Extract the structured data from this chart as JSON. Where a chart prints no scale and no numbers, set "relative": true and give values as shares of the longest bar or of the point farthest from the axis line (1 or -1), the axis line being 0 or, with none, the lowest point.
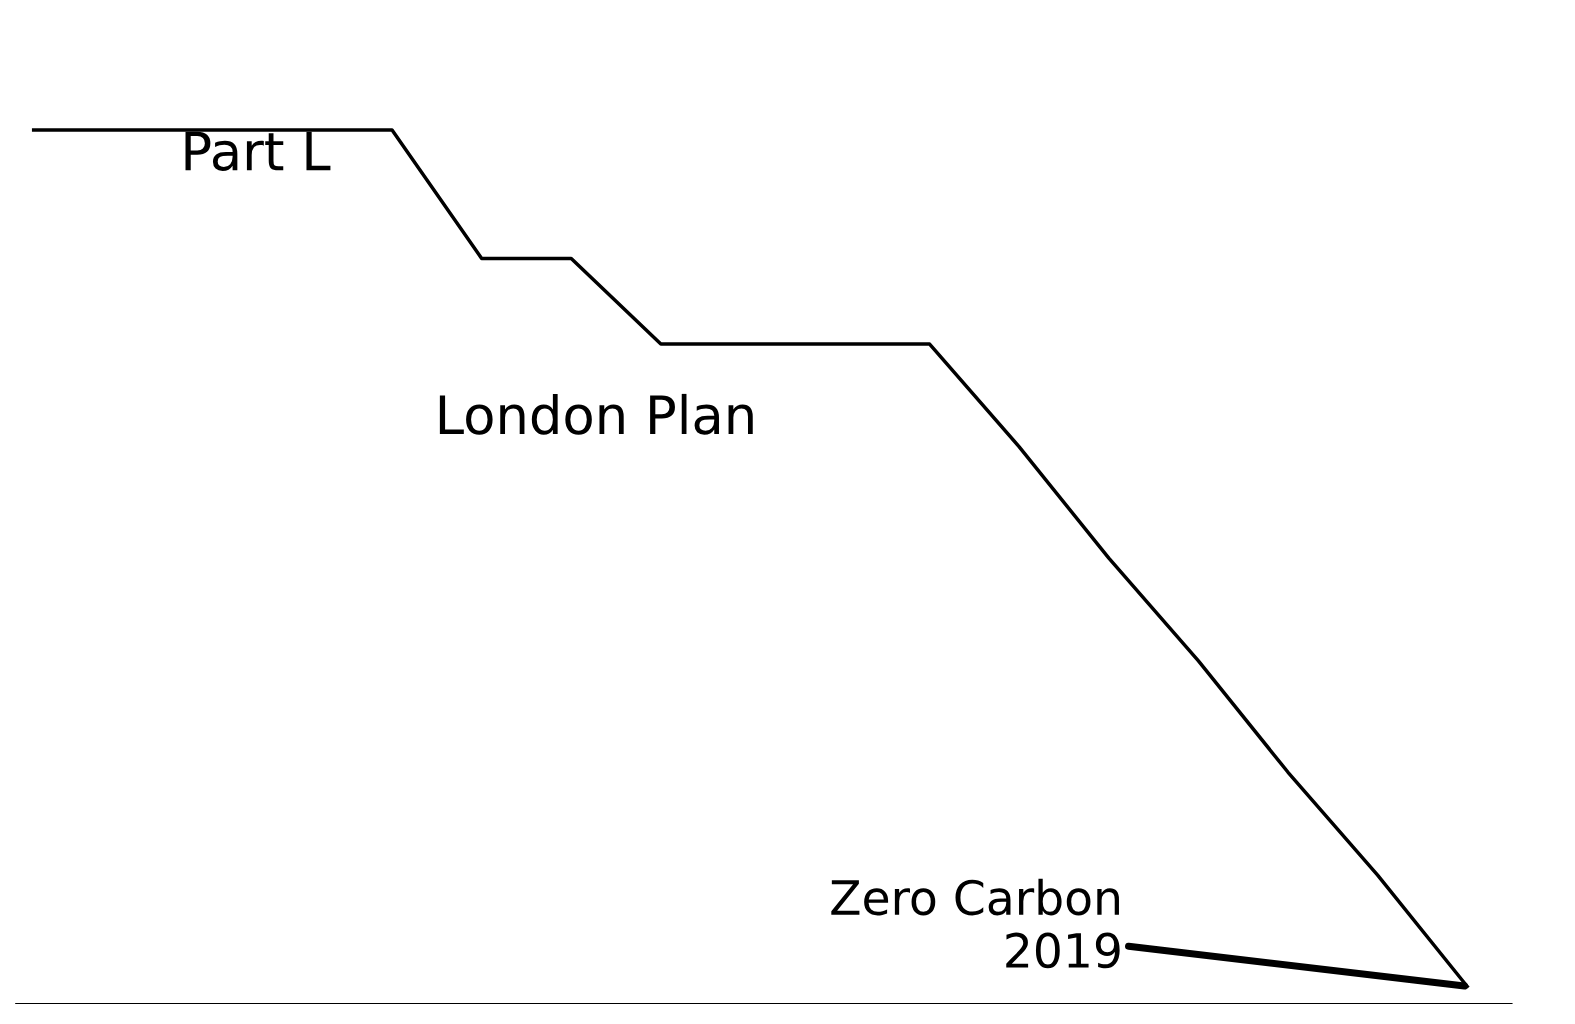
{
  "chart_data": {
    "type": "line",
    "relative": true,
    "color": "#000000",
    "categories": [
      null,
      null,
      null,
      null,
      null,
      null,
      null,
      null,
      null,
      null,
      null,
      null,
      null,
      null,
      null,
      null,
      null
    ],
    "values": [
      1.0,
      1.0,
      1.0,
      1.0,
      1.0,
      0.85,
      0.85,
      0.75,
      0.75,
      0.75,
      0.75,
      0.63,
      0.5,
      0.38,
      0.25,
      0.13,
      0.0
    ],
    "annotations": [
      "Part L",
      "London Plan",
      "Zero Carbon\n2019"
    ]
  }
}
